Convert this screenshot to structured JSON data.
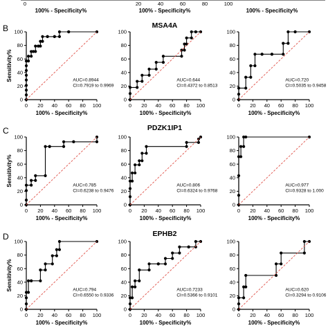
{
  "section_labels": {
    "B": "B",
    "C": "C",
    "D": "D"
  },
  "gene_titles": {
    "B": "MSA4A",
    "C": "PDZK1IP1",
    "D": "EPHB2"
  },
  "top_strip_label": "100% - Specificity%",
  "top_strip_ticks": [
    "0",
    "20",
    "40",
    "60",
    "80",
    "100"
  ],
  "colors": {
    "roc": "#000000",
    "reference": "#e0534a"
  },
  "chart_data": [
    {
      "id": "B1",
      "type": "line",
      "section": "B",
      "xlabel": "100% - Specificity%",
      "ylabel": "Sensitivity%",
      "xlim": [
        0,
        100
      ],
      "ylim": [
        0,
        100
      ],
      "xticks": [
        "0",
        "20",
        "40",
        "60",
        "80",
        "100"
      ],
      "yticks": [
        "0",
        "20",
        "40",
        "60",
        "80",
        "100"
      ],
      "annotation": [
        "AUC=0.8944",
        "CI=0.7919 to 0.9969"
      ],
      "series": [
        {
          "role": "roc",
          "x": [
            0,
            0,
            0,
            0,
            0,
            0,
            0,
            0,
            0,
            3,
            3,
            7,
            7,
            10,
            10,
            13,
            13,
            17,
            17,
            20,
            20,
            23,
            23,
            30,
            30,
            40,
            40,
            47,
            47,
            60,
            60,
            100
          ],
          "y": [
            0,
            7,
            14,
            21,
            29,
            36,
            43,
            50,
            57,
            57,
            64,
            64,
            71,
            71,
            71,
            71,
            79,
            79,
            79,
            79,
            86,
            86,
            93,
            93,
            93,
            93,
            93,
            93,
            100,
            100,
            100,
            100
          ]
        },
        {
          "role": "reference",
          "x": [
            0,
            100
          ],
          "y": [
            0,
            100
          ]
        }
      ]
    },
    {
      "id": "B2",
      "type": "line",
      "section": "B",
      "xlabel": "100% - Specificity%",
      "ylabel": "",
      "xlim": [
        0,
        100
      ],
      "ylim": [
        0,
        100
      ],
      "xticks": [
        "0",
        "20",
        "40",
        "60",
        "80",
        "100"
      ],
      "yticks": [
        "0",
        "20",
        "40",
        "60",
        "80",
        "100"
      ],
      "annotation": [
        "AUC=0.644",
        "CI=0.4372 to 0.8513"
      ],
      "series": [
        {
          "role": "roc",
          "x": [
            0,
            0,
            0,
            10,
            10,
            17,
            17,
            27,
            27,
            37,
            37,
            47,
            47,
            73,
            73,
            77,
            77,
            80,
            80,
            87,
            87,
            93,
            93,
            100
          ],
          "y": [
            0,
            9,
            18,
            18,
            27,
            27,
            36,
            36,
            45,
            45,
            55,
            55,
            64,
            64,
            73,
            73,
            82,
            82,
            91,
            91,
            100,
            100,
            100,
            100
          ]
        },
        {
          "role": "reference",
          "x": [
            0,
            100
          ],
          "y": [
            0,
            100
          ]
        }
      ]
    },
    {
      "id": "B3",
      "type": "line",
      "section": "B",
      "xlabel": "100% - Specificity%",
      "ylabel": "",
      "xlim": [
        0,
        100
      ],
      "ylim": [
        0,
        100
      ],
      "xticks": [
        "0",
        "20",
        "40",
        "60",
        "80",
        "100"
      ],
      "yticks": [
        "0",
        "20",
        "40",
        "60",
        "80",
        "100"
      ],
      "annotation": [
        "AUC=0.720",
        "CI=0.5035 to 0.9458"
      ],
      "series": [
        {
          "role": "roc",
          "x": [
            0,
            0,
            0,
            10,
            10,
            17,
            17,
            23,
            23,
            33,
            33,
            47,
            47,
            63,
            63,
            70,
            70,
            80,
            80,
            100
          ],
          "y": [
            0,
            8,
            17,
            17,
            33,
            33,
            50,
            50,
            67,
            67,
            67,
            67,
            67,
            67,
            83,
            83,
            100,
            100,
            100,
            100
          ]
        },
        {
          "role": "reference",
          "x": [
            0,
            100
          ],
          "y": [
            0,
            100
          ]
        }
      ]
    },
    {
      "id": "C1",
      "type": "line",
      "section": "C",
      "xlabel": "100% - Specificity%",
      "ylabel": "Sensitivity%",
      "xlim": [
        0,
        100
      ],
      "ylim": [
        0,
        100
      ],
      "xticks": [
        "0",
        "20",
        "40",
        "60",
        "80",
        "100"
      ],
      "yticks": [
        "0",
        "20",
        "40",
        "60",
        "80",
        "100"
      ],
      "annotation": [
        "AUC=0.785",
        "CI=0.6238 to 0.9476"
      ],
      "series": [
        {
          "role": "roc",
          "x": [
            0,
            0,
            0,
            0,
            7,
            7,
            13,
            13,
            27,
            27,
            33,
            33,
            53,
            53,
            67,
            67,
            100,
            100
          ],
          "y": [
            0,
            7,
            21,
            29,
            29,
            36,
            36,
            43,
            43,
            86,
            86,
            86,
            86,
            93,
            93,
            93,
            93,
            100
          ]
        },
        {
          "role": "reference",
          "x": [
            0,
            100
          ],
          "y": [
            0,
            100
          ]
        }
      ]
    },
    {
      "id": "C2",
      "type": "line",
      "section": "C",
      "xlabel": "100% - Specificity%",
      "ylabel": "",
      "xlim": [
        0,
        100
      ],
      "ylim": [
        0,
        100
      ],
      "xticks": [
        "0",
        "20",
        "40",
        "60",
        "80",
        "100"
      ],
      "yticks": [
        "0",
        "20",
        "40",
        "60",
        "80",
        "100"
      ],
      "annotation": [
        "AUC=0.806",
        "CI=0.6324 to 0.9768"
      ],
      "series": [
        {
          "role": "roc",
          "x": [
            0,
            0,
            0,
            0,
            3,
            3,
            7,
            7,
            13,
            13,
            17,
            17,
            23,
            23,
            80,
            80,
            97,
            97,
            100
          ],
          "y": [
            0,
            12,
            24,
            35,
            35,
            47,
            47,
            59,
            59,
            65,
            65,
            76,
            76,
            86,
            86,
            92,
            92,
            97,
            100
          ]
        },
        {
          "role": "reference",
          "x": [
            0,
            100
          ],
          "y": [
            0,
            100
          ]
        }
      ]
    },
    {
      "id": "C3",
      "type": "line",
      "section": "C",
      "xlabel": "100% - Specificity%",
      "ylabel": "",
      "xlim": [
        0,
        100
      ],
      "ylim": [
        0,
        100
      ],
      "xticks": [
        "0",
        "20",
        "40",
        "60",
        "80",
        "100"
      ],
      "yticks": [
        "0",
        "20",
        "40",
        "60",
        "80",
        "100"
      ],
      "annotation": [
        "AUC=0.977",
        "CI=0.9328 to 1.000"
      ],
      "series": [
        {
          "role": "roc",
          "x": [
            0,
            0,
            0,
            0,
            3,
            3,
            7,
            7,
            10,
            100
          ],
          "y": [
            0,
            14,
            43,
            71,
            71,
            86,
            86,
            100,
            100,
            100
          ]
        },
        {
          "role": "reference",
          "x": [
            0,
            100
          ],
          "y": [
            0,
            100
          ]
        }
      ]
    },
    {
      "id": "D1",
      "type": "line",
      "section": "D",
      "xlabel": "100% - Specificity%",
      "ylabel": "Sensitivity%",
      "xlim": [
        0,
        100
      ],
      "ylim": [
        0,
        100
      ],
      "xticks": [
        "0",
        "20",
        "40",
        "60",
        "80",
        "100"
      ],
      "yticks": [
        "0",
        "20",
        "40",
        "60",
        "80",
        "100"
      ],
      "annotation": [
        "AUC=0.794",
        "CI=0.6550 to 0.9336"
      ],
      "series": [
        {
          "role": "roc",
          "x": [
            0,
            0,
            0,
            0,
            3,
            3,
            7,
            7,
            20,
            20,
            27,
            27,
            37,
            37,
            43,
            43,
            47,
            47,
            100
          ],
          "y": [
            0,
            8,
            17,
            25,
            25,
            42,
            42,
            42,
            42,
            58,
            58,
            67,
            67,
            79,
            79,
            88,
            88,
            100,
            100
          ]
        },
        {
          "role": "reference",
          "x": [
            0,
            100
          ],
          "y": [
            0,
            100
          ]
        }
      ]
    },
    {
      "id": "D2",
      "type": "line",
      "section": "D",
      "xlabel": "100% - Specificity%",
      "ylabel": "",
      "xlim": [
        0,
        100
      ],
      "ylim": [
        0,
        100
      ],
      "xticks": [
        "0",
        "20",
        "40",
        "60",
        "80",
        "100"
      ],
      "yticks": [
        "0",
        "20",
        "40",
        "60",
        "80",
        "100"
      ],
      "annotation": [
        "AUC=0.7233",
        "CI=0.5366 to 0.9101"
      ],
      "series": [
        {
          "role": "roc",
          "x": [
            0,
            0,
            0,
            3,
            3,
            7,
            7,
            13,
            13,
            27,
            27,
            40,
            40,
            50,
            50,
            60,
            60,
            70,
            70,
            83,
            83,
            93,
            93,
            100
          ],
          "y": [
            0,
            8,
            17,
            17,
            33,
            33,
            42,
            42,
            58,
            58,
            67,
            67,
            67,
            67,
            75,
            75,
            83,
            83,
            92,
            92,
            92,
            92,
            100,
            100
          ]
        },
        {
          "role": "reference",
          "x": [
            0,
            100
          ],
          "y": [
            0,
            100
          ]
        }
      ]
    },
    {
      "id": "D3",
      "type": "line",
      "section": "D",
      "xlabel": "100% - Specificity%",
      "ylabel": "",
      "xlim": [
        0,
        100
      ],
      "ylim": [
        0,
        100
      ],
      "xticks": [
        "0",
        "20",
        "40",
        "60",
        "80",
        "100"
      ],
      "yticks": [
        "0",
        "20",
        "40",
        "60",
        "80",
        "100"
      ],
      "annotation": [
        "AUC=0.620",
        "CI=0.3294 to 0.9106"
      ],
      "series": [
        {
          "role": "roc",
          "x": [
            0,
            0,
            0,
            7,
            7,
            10,
            10,
            53,
            53,
            60,
            60,
            93,
            93,
            100
          ],
          "y": [
            0,
            8,
            17,
            17,
            33,
            33,
            50,
            50,
            67,
            67,
            83,
            83,
            100,
            100
          ]
        },
        {
          "role": "reference",
          "x": [
            0,
            100
          ],
          "y": [
            0,
            100
          ]
        }
      ]
    }
  ]
}
